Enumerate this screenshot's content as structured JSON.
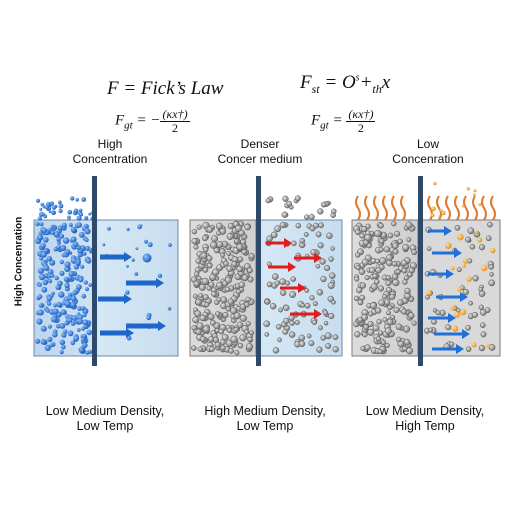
{
  "equations": {
    "top_left": "F = Fick’s Law",
    "top_right_prefix": "F",
    "top_right_sub": "st",
    "top_right_mid": " = O",
    "top_right_sup": "s",
    "top_right_plus": "+",
    "top_right_sub2": "th",
    "top_right_end": "x",
    "sub_left_prefix": "F",
    "sub_left_sub": "gt",
    "sub_left_eq": " = −",
    "sub_left_num": "(κx†)",
    "sub_left_den": "2",
    "sub_right_prefix": "F",
    "sub_right_sub": "gt",
    "sub_right_eq": " = ",
    "sub_right_num": "(κx†)",
    "sub_right_den": "2"
  },
  "y_axis_label": "High Concenration",
  "panels": [
    {
      "top_line1": "High",
      "top_line2": "Concentration",
      "bottom_line1": "Low Medium Density,",
      "bottom_line2": "Low Temp",
      "particle_color": "#1f6fd6",
      "arrow_color": "#1f66c9"
    },
    {
      "top_line1": "Denser",
      "top_line2": "Concer medium",
      "bottom_line1": "High Medium Density,",
      "bottom_line2": "Low Temp",
      "particle_color": "#8a8a8a",
      "arrow_color": "#e01c1c"
    },
    {
      "top_line1": "Low",
      "top_line2": "Concenration",
      "bottom_line1": "Low Medium Density,",
      "bottom_line2": "High Temp",
      "particle_color": "#8a8a8a",
      "arrow_color": "#2170d8",
      "heat_color": "#e07a2a",
      "hot_particle_color": "#f0a030"
    }
  ]
}
